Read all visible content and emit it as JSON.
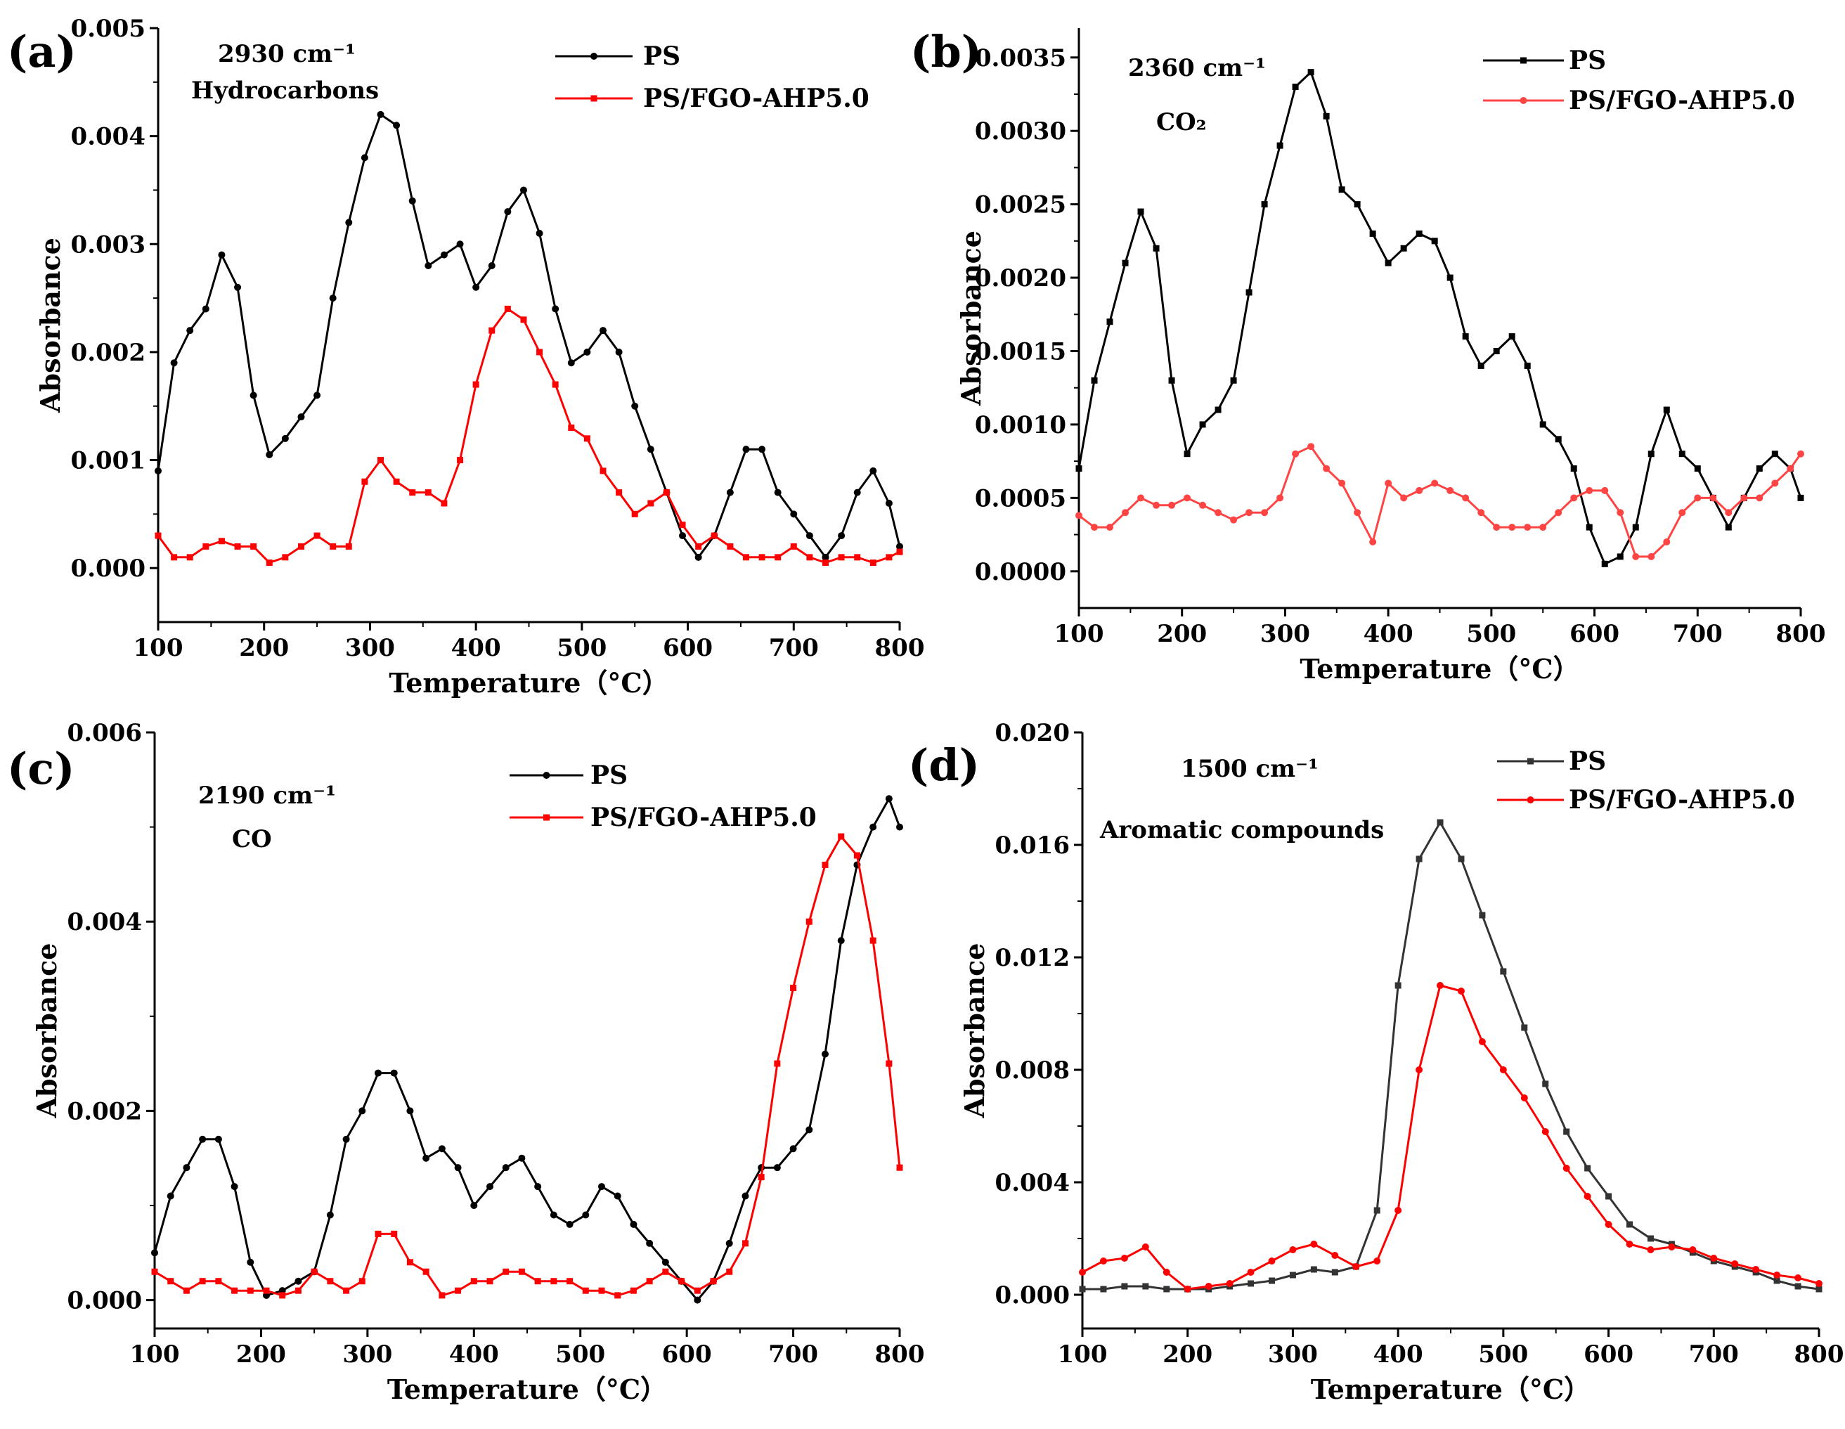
{
  "chart_data": [
    {
      "panel": "(a)",
      "type": "line",
      "annotations": [
        "2930 cm⁻¹",
        "Hydrocarbons"
      ],
      "xlabel": "Temperature（°C）",
      "ylabel": "Absorbance",
      "xlim": [
        100,
        800
      ],
      "ylim": [
        -0.0005,
        0.005
      ],
      "xticks": [
        100,
        200,
        300,
        400,
        500,
        600,
        700,
        800
      ],
      "yticks": [
        0.0,
        0.001,
        0.002,
        0.003,
        0.004,
        0.005
      ],
      "ytick_labels": [
        "0.000",
        "0.001",
        "0.002",
        "0.003",
        "0.004",
        "0.005"
      ],
      "legend": "top-right",
      "series": [
        {
          "name": "PS",
          "color": "#000000",
          "marker": "circle",
          "x": [
            100,
            115,
            130,
            145,
            160,
            175,
            190,
            205,
            220,
            235,
            250,
            265,
            280,
            295,
            310,
            325,
            340,
            355,
            370,
            385,
            400,
            415,
            430,
            445,
            460,
            475,
            490,
            505,
            520,
            535,
            550,
            565,
            580,
            595,
            610,
            625,
            640,
            655,
            670,
            685,
            700,
            715,
            730,
            745,
            760,
            775,
            790,
            800
          ],
          "y": [
            0.0009,
            0.0019,
            0.0022,
            0.0024,
            0.0029,
            0.0026,
            0.0016,
            0.00105,
            0.0012,
            0.0014,
            0.0016,
            0.0025,
            0.0032,
            0.0038,
            0.0042,
            0.0041,
            0.0034,
            0.0028,
            0.0029,
            0.003,
            0.0026,
            0.0028,
            0.0033,
            0.0035,
            0.0031,
            0.0024,
            0.0019,
            0.002,
            0.0022,
            0.002,
            0.0015,
            0.0011,
            0.0007,
            0.0003,
            0.0001,
            0.0003,
            0.0007,
            0.0011,
            0.0011,
            0.0007,
            0.0005,
            0.0003,
            0.0001,
            0.0003,
            0.0007,
            0.0009,
            0.0006,
            0.0002
          ]
        },
        {
          "name": "PS/FGO-AHP5.0",
          "color": "#ff0000",
          "marker": "square",
          "x": [
            100,
            115,
            130,
            145,
            160,
            175,
            190,
            205,
            220,
            235,
            250,
            265,
            280,
            295,
            310,
            325,
            340,
            355,
            370,
            385,
            400,
            415,
            430,
            445,
            460,
            475,
            490,
            505,
            520,
            535,
            550,
            565,
            580,
            595,
            610,
            625,
            640,
            655,
            670,
            685,
            700,
            715,
            730,
            745,
            760,
            775,
            790,
            800
          ],
          "y": [
            0.0003,
            0.0001,
            0.0001,
            0.0002,
            0.00025,
            0.0002,
            0.0002,
            5e-05,
            0.0001,
            0.0002,
            0.0003,
            0.0002,
            0.0002,
            0.0008,
            0.001,
            0.0008,
            0.0007,
            0.0007,
            0.0006,
            0.001,
            0.0017,
            0.0022,
            0.0024,
            0.0023,
            0.002,
            0.0017,
            0.0013,
            0.0012,
            0.0009,
            0.0007,
            0.0005,
            0.0006,
            0.0007,
            0.0004,
            0.0002,
            0.0003,
            0.0002,
            0.0001,
            0.0001,
            0.0001,
            0.0002,
            0.0001,
            5e-05,
            0.0001,
            0.0001,
            5e-05,
            0.0001,
            0.00015
          ]
        }
      ]
    },
    {
      "panel": "(b)",
      "type": "line",
      "annotations": [
        "2360 cm⁻¹",
        "CO₂"
      ],
      "xlabel": "Temperature（°C）",
      "ylabel": "Absorbance",
      "xlim": [
        100,
        800
      ],
      "ylim": [
        -0.00025,
        0.0037
      ],
      "xticks": [
        100,
        200,
        300,
        400,
        500,
        600,
        700,
        800
      ],
      "yticks": [
        0.0,
        0.0005,
        0.001,
        0.0015,
        0.002,
        0.0025,
        0.003,
        0.0035
      ],
      "ytick_labels": [
        "0.0000",
        "0.0005",
        "0.0010",
        "0.0015",
        "0.0020",
        "0.0025",
        "0.0030",
        "0.0035"
      ],
      "legend": "top-right",
      "series": [
        {
          "name": "PS",
          "color": "#000000",
          "marker": "square",
          "x": [
            100,
            115,
            130,
            145,
            160,
            175,
            190,
            205,
            220,
            235,
            250,
            265,
            280,
            295,
            310,
            325,
            340,
            355,
            370,
            385,
            400,
            415,
            430,
            445,
            460,
            475,
            490,
            505,
            520,
            535,
            550,
            565,
            580,
            595,
            610,
            625,
            640,
            655,
            670,
            685,
            700,
            715,
            730,
            745,
            760,
            775,
            790,
            800
          ],
          "y": [
            0.0007,
            0.0013,
            0.0017,
            0.0021,
            0.00245,
            0.0022,
            0.0013,
            0.0008,
            0.001,
            0.0011,
            0.0013,
            0.0019,
            0.0025,
            0.0029,
            0.0033,
            0.0034,
            0.0031,
            0.0026,
            0.0025,
            0.0023,
            0.0021,
            0.0022,
            0.0023,
            0.00225,
            0.002,
            0.0016,
            0.0014,
            0.0015,
            0.0016,
            0.0014,
            0.001,
            0.0009,
            0.0007,
            0.0003,
            5e-05,
            0.0001,
            0.0003,
            0.0008,
            0.0011,
            0.0008,
            0.0007,
            0.0005,
            0.0003,
            0.0005,
            0.0007,
            0.0008,
            0.0007,
            0.0005
          ]
        },
        {
          "name": "PS/FGO-AHP5.0",
          "color": "#ff4444",
          "marker": "circle",
          "x": [
            100,
            115,
            130,
            145,
            160,
            175,
            190,
            205,
            220,
            235,
            250,
            265,
            280,
            295,
            310,
            325,
            340,
            355,
            370,
            385,
            400,
            415,
            430,
            445,
            460,
            475,
            490,
            505,
            520,
            535,
            550,
            565,
            580,
            595,
            610,
            625,
            640,
            655,
            670,
            685,
            700,
            715,
            730,
            745,
            760,
            775,
            790,
            800
          ],
          "y": [
            0.00038,
            0.0003,
            0.0003,
            0.0004,
            0.0005,
            0.00045,
            0.00045,
            0.0005,
            0.00045,
            0.0004,
            0.00035,
            0.0004,
            0.0004,
            0.0005,
            0.0008,
            0.00085,
            0.0007,
            0.0006,
            0.0004,
            0.0002,
            0.0006,
            0.0005,
            0.00055,
            0.0006,
            0.00055,
            0.0005,
            0.0004,
            0.0003,
            0.0003,
            0.0003,
            0.0003,
            0.0004,
            0.0005,
            0.00055,
            0.00055,
            0.0004,
            0.0001,
            0.0001,
            0.0002,
            0.0004,
            0.0005,
            0.0005,
            0.0004,
            0.0005,
            0.0005,
            0.0006,
            0.0007,
            0.0008
          ]
        }
      ]
    },
    {
      "panel": "(c)",
      "type": "line",
      "annotations": [
        "2190 cm⁻¹",
        "CO"
      ],
      "xlabel": "Temperature（°C）",
      "ylabel": "Absorbance",
      "xlim": [
        100,
        800
      ],
      "ylim": [
        -0.0003,
        0.006
      ],
      "xticks": [
        100,
        200,
        300,
        400,
        500,
        600,
        700,
        800
      ],
      "yticks": [
        0.0,
        0.002,
        0.004,
        0.006
      ],
      "ytick_labels": [
        "0.000",
        "0.002",
        "0.004",
        "0.006"
      ],
      "legend": "top-right",
      "series": [
        {
          "name": "PS",
          "color": "#000000",
          "marker": "circle",
          "x": [
            100,
            115,
            130,
            145,
            160,
            175,
            190,
            205,
            220,
            235,
            250,
            265,
            280,
            295,
            310,
            325,
            340,
            355,
            370,
            385,
            400,
            415,
            430,
            445,
            460,
            475,
            490,
            505,
            520,
            535,
            550,
            565,
            580,
            595,
            610,
            625,
            640,
            655,
            670,
            685,
            700,
            715,
            730,
            745,
            760,
            775,
            790,
            800
          ],
          "y": [
            0.0005,
            0.0011,
            0.0014,
            0.0017,
            0.0017,
            0.0012,
            0.0004,
            5e-05,
            0.0001,
            0.0002,
            0.0003,
            0.0009,
            0.0017,
            0.002,
            0.0024,
            0.0024,
            0.002,
            0.0015,
            0.0016,
            0.0014,
            0.001,
            0.0012,
            0.0014,
            0.0015,
            0.0012,
            0.0009,
            0.0008,
            0.0009,
            0.0012,
            0.0011,
            0.0008,
            0.0006,
            0.0004,
            0.0002,
            0.0,
            0.0002,
            0.0006,
            0.0011,
            0.0014,
            0.0014,
            0.0016,
            0.0018,
            0.0026,
            0.0038,
            0.0046,
            0.005,
            0.0053,
            0.005
          ]
        },
        {
          "name": "PS/FGO-AHP5.0",
          "color": "#ff0000",
          "marker": "square",
          "x": [
            100,
            115,
            130,
            145,
            160,
            175,
            190,
            205,
            220,
            235,
            250,
            265,
            280,
            295,
            310,
            325,
            340,
            355,
            370,
            385,
            400,
            415,
            430,
            445,
            460,
            475,
            490,
            505,
            520,
            535,
            550,
            565,
            580,
            595,
            610,
            625,
            640,
            655,
            670,
            685,
            700,
            715,
            730,
            745,
            760,
            775,
            790,
            800
          ],
          "y": [
            0.0003,
            0.0002,
            0.0001,
            0.0002,
            0.0002,
            0.0001,
            0.0001,
            0.0001,
            5e-05,
            0.0001,
            0.0003,
            0.0002,
            0.0001,
            0.0002,
            0.0007,
            0.0007,
            0.0004,
            0.0003,
            5e-05,
            0.0001,
            0.0002,
            0.0002,
            0.0003,
            0.0003,
            0.0002,
            0.0002,
            0.0002,
            0.0001,
            0.0001,
            5e-05,
            0.0001,
            0.0002,
            0.0003,
            0.0002,
            0.0001,
            0.0002,
            0.0003,
            0.0006,
            0.0013,
            0.0025,
            0.0033,
            0.004,
            0.0046,
            0.0049,
            0.0047,
            0.0038,
            0.0025,
            0.0014
          ]
        }
      ]
    },
    {
      "panel": "(d)",
      "type": "line",
      "annotations": [
        "1500 cm⁻¹",
        "Aromatic compounds"
      ],
      "xlabel": "Temperature（°C）",
      "ylabel": "Absorbance",
      "xlim": [
        100,
        800
      ],
      "ylim": [
        -0.0012,
        0.02
      ],
      "xticks": [
        100,
        200,
        300,
        400,
        500,
        600,
        700,
        800
      ],
      "yticks": [
        0.0,
        0.004,
        0.008,
        0.012,
        0.016,
        0.02
      ],
      "ytick_labels": [
        "0.000",
        "0.004",
        "0.008",
        "0.012",
        "0.016",
        "0.020"
      ],
      "legend": "top-right",
      "series": [
        {
          "name": "PS",
          "color": "#333333",
          "marker": "square",
          "x": [
            100,
            120,
            140,
            160,
            180,
            200,
            220,
            240,
            260,
            280,
            300,
            320,
            340,
            360,
            380,
            400,
            420,
            440,
            460,
            480,
            500,
            520,
            540,
            560,
            580,
            600,
            620,
            640,
            660,
            680,
            700,
            720,
            740,
            760,
            780,
            800
          ],
          "y": [
            0.0002,
            0.0002,
            0.0003,
            0.0003,
            0.0002,
            0.0002,
            0.0002,
            0.0003,
            0.0004,
            0.0005,
            0.0007,
            0.0009,
            0.0008,
            0.001,
            0.003,
            0.011,
            0.0155,
            0.0168,
            0.0155,
            0.0135,
            0.0115,
            0.0095,
            0.0075,
            0.0058,
            0.0045,
            0.0035,
            0.0025,
            0.002,
            0.0018,
            0.0015,
            0.0012,
            0.001,
            0.0008,
            0.0005,
            0.0003,
            0.0002
          ]
        },
        {
          "name": "PS/FGO-AHP5.0",
          "color": "#ff0000",
          "marker": "circle",
          "x": [
            100,
            120,
            140,
            160,
            180,
            200,
            220,
            240,
            260,
            280,
            300,
            320,
            340,
            360,
            380,
            400,
            420,
            440,
            460,
            480,
            500,
            520,
            540,
            560,
            580,
            600,
            620,
            640,
            660,
            680,
            700,
            720,
            740,
            760,
            780,
            800
          ],
          "y": [
            0.0008,
            0.0012,
            0.0013,
            0.0017,
            0.0008,
            0.0002,
            0.0003,
            0.0004,
            0.0008,
            0.0012,
            0.0016,
            0.0018,
            0.0014,
            0.001,
            0.0012,
            0.003,
            0.008,
            0.011,
            0.0108,
            0.009,
            0.008,
            0.007,
            0.0058,
            0.0045,
            0.0035,
            0.0025,
            0.0018,
            0.0016,
            0.0017,
            0.0016,
            0.0013,
            0.0011,
            0.0009,
            0.0007,
            0.0006,
            0.0004
          ]
        }
      ]
    }
  ]
}
